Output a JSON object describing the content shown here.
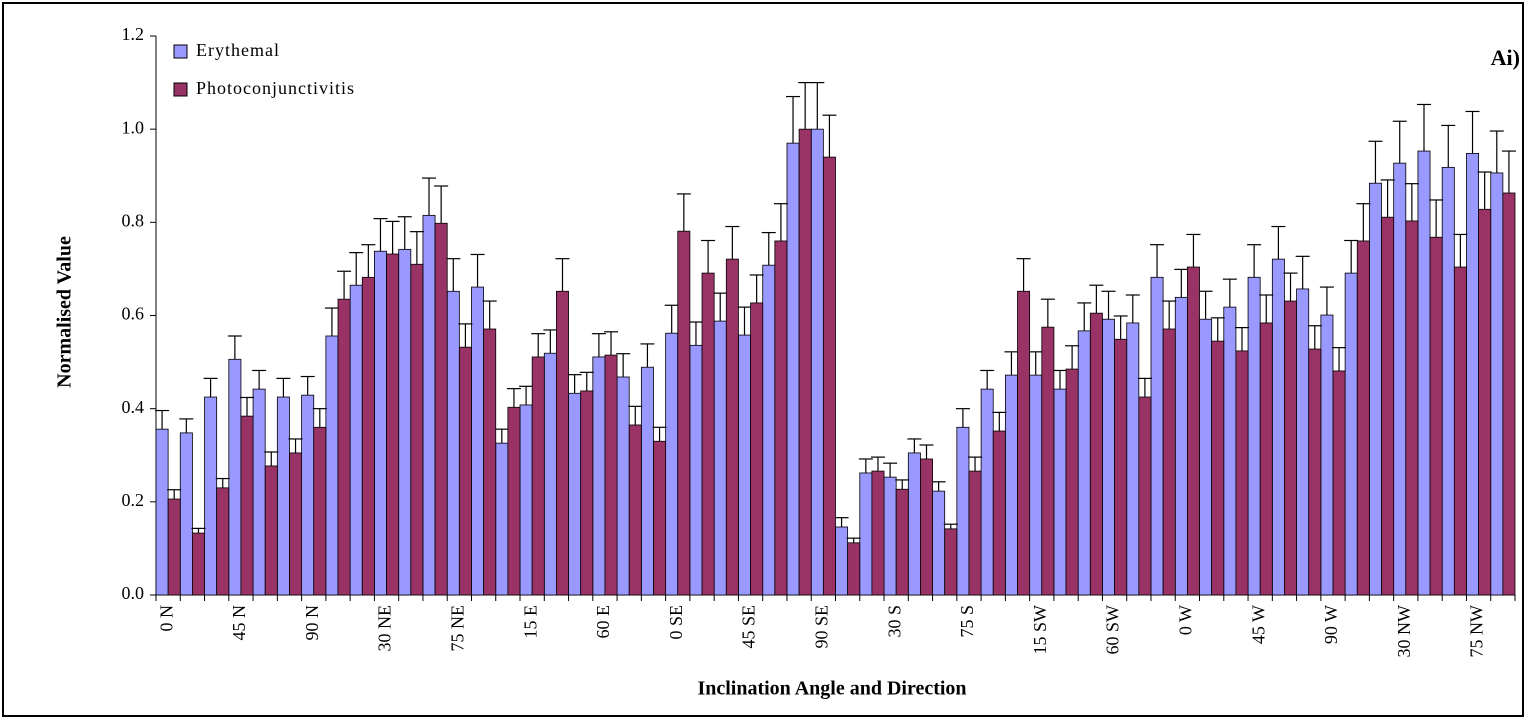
{
  "chart_data": {
    "type": "bar",
    "title_annotation": "Ai)",
    "x_label": "Inclination Angle and Direction",
    "y_label": "Normalised Value",
    "categories": [
      "0 N",
      null,
      null,
      "45 N",
      null,
      null,
      "90 N",
      null,
      null,
      "30 NE",
      null,
      null,
      "75 NE",
      null,
      null,
      "15 E",
      null,
      null,
      "60 E",
      null,
      null,
      "0 SE",
      null,
      null,
      "45 SE",
      null,
      null,
      "90 SE",
      null,
      null,
      "30 S",
      null,
      null,
      "75 S",
      null,
      null,
      "15 SW",
      null,
      null,
      "60 SW",
      null,
      null,
      "0 W",
      null,
      null,
      "45 W",
      null,
      null,
      "90 W",
      null,
      null,
      "30 NW",
      null,
      null,
      "75 NW",
      null
    ],
    "series": [
      {
        "name": "Erythemal",
        "color": "#9999ff",
        "values": [
          0.356,
          0.348,
          0.425,
          0.506,
          0.442,
          0.425,
          0.429,
          0.556,
          0.665,
          0.738,
          0.742,
          0.815,
          0.652,
          0.661,
          0.326,
          0.408,
          0.519,
          0.433,
          0.511,
          0.468,
          0.489,
          0.562,
          0.536,
          0.588,
          0.558,
          0.708,
          0.97,
          1.0,
          0.146,
          0.262,
          0.253,
          0.305,
          0.223,
          0.36,
          0.442,
          0.472,
          0.472,
          0.442,
          0.567,
          0.592,
          0.584,
          0.682,
          0.639,
          0.592,
          0.618,
          0.682,
          0.721,
          0.657,
          0.601,
          0.691,
          0.884,
          0.927,
          0.953,
          0.918,
          0.948,
          0.906
        ],
        "errors": [
          0.04,
          0.03,
          0.04,
          0.05,
          0.04,
          0.04,
          0.04,
          0.06,
          0.07,
          0.07,
          0.07,
          0.08,
          0.07,
          0.07,
          0.03,
          0.04,
          0.05,
          0.04,
          0.05,
          0.05,
          0.05,
          0.06,
          0.05,
          0.06,
          0.06,
          0.07,
          0.1,
          0.1,
          0.02,
          0.03,
          0.03,
          0.03,
          0.02,
          0.04,
          0.04,
          0.05,
          0.05,
          0.04,
          0.06,
          0.06,
          0.06,
          0.07,
          0.06,
          0.06,
          0.06,
          0.07,
          0.07,
          0.07,
          0.06,
          0.07,
          0.09,
          0.09,
          0.1,
          0.09,
          0.09,
          0.09
        ]
      },
      {
        "name": "Photoconjunctivitis",
        "color": "#993366",
        "values": [
          0.206,
          0.133,
          0.23,
          0.384,
          0.277,
          0.305,
          0.36,
          0.635,
          0.682,
          0.732,
          0.71,
          0.798,
          0.532,
          0.571,
          0.403,
          0.511,
          0.652,
          0.438,
          0.515,
          0.365,
          0.33,
          0.781,
          0.691,
          0.721,
          0.627,
          0.76,
          1.0,
          0.94,
          0.112,
          0.266,
          0.227,
          0.292,
          0.142,
          0.266,
          0.352,
          0.652,
          0.575,
          0.485,
          0.605,
          0.549,
          0.425,
          0.571,
          0.704,
          0.545,
          0.524,
          0.584,
          0.631,
          0.528,
          0.481,
          0.76,
          0.811,
          0.803,
          0.768,
          0.704,
          0.828,
          0.863
        ],
        "errors": [
          0.02,
          0.01,
          0.02,
          0.04,
          0.03,
          0.03,
          0.04,
          0.06,
          0.07,
          0.07,
          0.07,
          0.08,
          0.05,
          0.06,
          0.04,
          0.05,
          0.07,
          0.04,
          0.05,
          0.04,
          0.03,
          0.08,
          0.07,
          0.07,
          0.06,
          0.08,
          0.1,
          0.09,
          0.01,
          0.03,
          0.02,
          0.03,
          0.01,
          0.03,
          0.04,
          0.07,
          0.06,
          0.05,
          0.06,
          0.05,
          0.04,
          0.06,
          0.07,
          0.05,
          0.05,
          0.06,
          0.06,
          0.05,
          0.05,
          0.08,
          0.08,
          0.08,
          0.08,
          0.07,
          0.08,
          0.09
        ]
      }
    ],
    "ylim": [
      0,
      1.2
    ],
    "yticks": [
      {
        "value": 0,
        "label": "0.0"
      },
      0.2,
      0.4,
      0.6,
      0.8,
      {
        "value": 1,
        "label": "1.0"
      },
      1.2
    ],
    "legend": "top-left"
  }
}
